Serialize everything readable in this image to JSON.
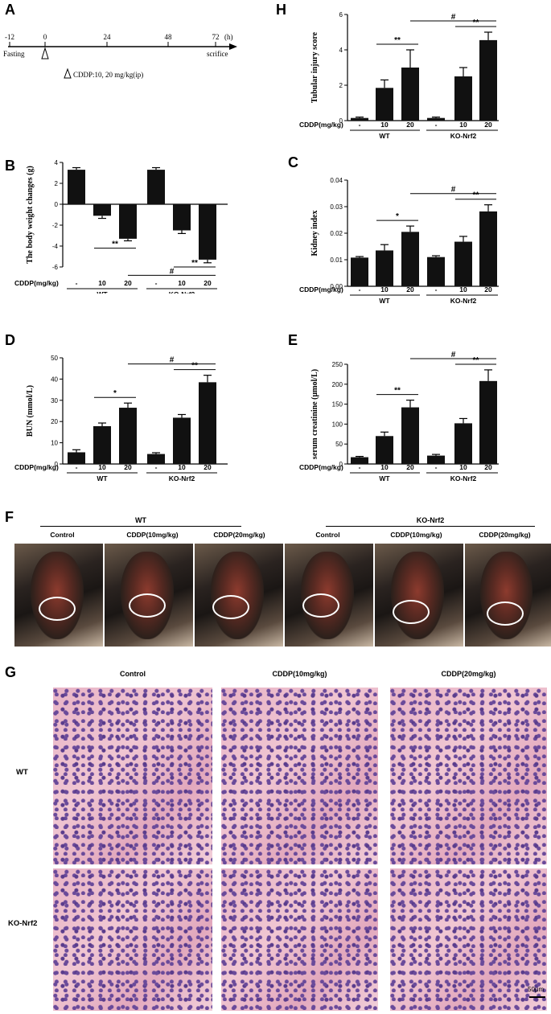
{
  "panel_A": {
    "letter": "A",
    "ticks": [
      "-12",
      "0",
      "24",
      "48",
      "72"
    ],
    "unit": "(h)",
    "fasting_label": "Fasting",
    "end_label": "scrifice",
    "treatment_label": "CDDP:10, 20 mg/kg(ip)"
  },
  "group_labels": {
    "cddp_row": "CDDP(mg/kg)",
    "dose_labels": [
      "-",
      "10",
      "20",
      "-",
      "10",
      "20"
    ],
    "wt": "WT",
    "ko": "KO-Nrf2"
  },
  "chart_data": [
    {
      "id": "H",
      "letter": "H",
      "type": "bar",
      "ylabel": "Tubular injury score",
      "ylim": [
        0,
        6
      ],
      "yticks": [
        0,
        2,
        4,
        6
      ],
      "yticklabels": [
        "0",
        "2",
        "4",
        "6"
      ],
      "values": [
        0.15,
        1.85,
        3.0,
        0.15,
        2.5,
        4.55
      ],
      "errors": [
        0.05,
        0.45,
        1.0,
        0.05,
        0.5,
        0.45
      ],
      "annotations": [
        {
          "from": 1,
          "to": 2,
          "label": "**"
        },
        {
          "from": 4,
          "to": 5,
          "label": "**"
        },
        {
          "from": 2,
          "to": 5,
          "label": "#"
        }
      ]
    },
    {
      "id": "B",
      "letter": "B",
      "type": "bar",
      "ylabel": "The body weight changes (g)",
      "ylim": [
        -6,
        4
      ],
      "yticks": [
        4,
        2,
        0,
        -2,
        -4,
        -6
      ],
      "yticklabels": [
        "4",
        "2",
        "0",
        "-2",
        "-4",
        "-6"
      ],
      "values": [
        3.3,
        -1.1,
        -3.3,
        3.3,
        -2.5,
        -5.3
      ],
      "errors": [
        0.2,
        0.25,
        0.2,
        0.2,
        0.3,
        0.3
      ],
      "annotations": [
        {
          "from": 1,
          "to": 2,
          "label": "**",
          "below": true,
          "y": -4.2
        },
        {
          "from": 4,
          "to": 5,
          "label": "**",
          "below": true,
          "y": -6.0
        },
        {
          "from": 2,
          "to": 5,
          "label": "#",
          "below": true,
          "y": -6.8
        }
      ]
    },
    {
      "id": "C",
      "letter": "C",
      "type": "bar",
      "ylabel": "Kidney index",
      "ylim": [
        0,
        0.04
      ],
      "yticks": [
        0,
        0.01,
        0.02,
        0.03,
        0.04
      ],
      "yticklabels": [
        "0.00",
        "0.01",
        "0.02",
        "0.03",
        "0.04"
      ],
      "values": [
        0.0108,
        0.0135,
        0.0205,
        0.011,
        0.0168,
        0.0282
      ],
      "errors": [
        0.0004,
        0.0022,
        0.0022,
        0.0005,
        0.002,
        0.0025
      ],
      "annotations": [
        {
          "from": 1,
          "to": 2,
          "label": "*"
        },
        {
          "from": 4,
          "to": 5,
          "label": "**"
        },
        {
          "from": 2,
          "to": 5,
          "label": "#"
        }
      ]
    },
    {
      "id": "D",
      "letter": "D",
      "type": "bar",
      "ylabel": "BUN (mmol/L)",
      "ylim": [
        0,
        50
      ],
      "yticks": [
        0,
        10,
        20,
        30,
        40,
        50
      ],
      "yticklabels": [
        "0",
        "10",
        "20",
        "30",
        "40",
        "50"
      ],
      "values": [
        5.5,
        17.8,
        26.5,
        4.7,
        21.8,
        38.5
      ],
      "errors": [
        1.2,
        1.5,
        2.2,
        0.6,
        1.5,
        3.3
      ],
      "annotations": [
        {
          "from": 1,
          "to": 2,
          "label": "*"
        },
        {
          "from": 4,
          "to": 5,
          "label": "**"
        },
        {
          "from": 2,
          "to": 5,
          "label": "#"
        }
      ]
    },
    {
      "id": "E",
      "letter": "E",
      "type": "bar",
      "ylabel": "serum creatinine (μmol/L)",
      "ylim": [
        0,
        250
      ],
      "yticks": [
        0,
        50,
        100,
        150,
        200,
        250
      ],
      "yticklabels": [
        "0",
        "50",
        "100",
        "150",
        "200",
        "250"
      ],
      "values": [
        17,
        70,
        142,
        21,
        102,
        208
      ],
      "errors": [
        2,
        10,
        18,
        3,
        12,
        28
      ],
      "annotations": [
        {
          "from": 1,
          "to": 2,
          "label": "**"
        },
        {
          "from": 4,
          "to": 5,
          "label": "**"
        },
        {
          "from": 2,
          "to": 5,
          "label": "#"
        }
      ]
    }
  ],
  "panel_F": {
    "letter": "F",
    "wt": "WT",
    "ko": "KO-Nrf2",
    "columns": [
      "Control",
      "CDDP(10mg/kg)",
      "CDDP(20mg/kg)",
      "Control",
      "CDDP(10mg/kg)",
      "CDDP(20mg/kg)"
    ]
  },
  "panel_G": {
    "letter": "G",
    "columns": [
      "Control",
      "CDDP(10mg/kg)",
      "CDDP(20mg/kg)"
    ],
    "rows": [
      "WT",
      "KO-Nrf2"
    ],
    "scale": "50μm"
  }
}
